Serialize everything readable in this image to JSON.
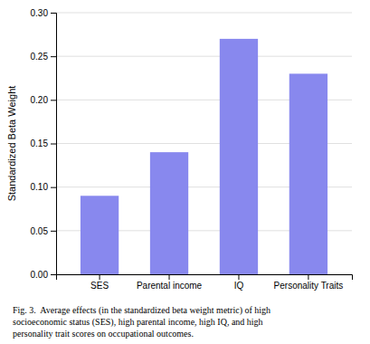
{
  "chart_data": {
    "type": "bar",
    "categories": [
      "SES",
      "Parental income",
      "IQ",
      "Personality Traits"
    ],
    "values": [
      0.09,
      0.14,
      0.27,
      0.23
    ],
    "color": "#8888ee",
    "y_label": "Standardized Beta Weight",
    "ylim": [
      0,
      0.3
    ],
    "yticks": [
      {
        "value": 0,
        "label": "0.00"
      },
      0.05,
      {
        "value": 0.1,
        "label": "0.10"
      },
      0.15,
      {
        "value": 0.2,
        "label": "0.20"
      },
      0.25,
      {
        "value": 0.3,
        "label": "0.30"
      }
    ],
    "grid": true,
    "caption": [
      "Fig. 3.  Average effects (in the standardized beta weight metric) of high",
      "socioeconomic status (SES), high parental income, high IQ, and high",
      "personality trait scores on occupational outcomes."
    ]
  }
}
